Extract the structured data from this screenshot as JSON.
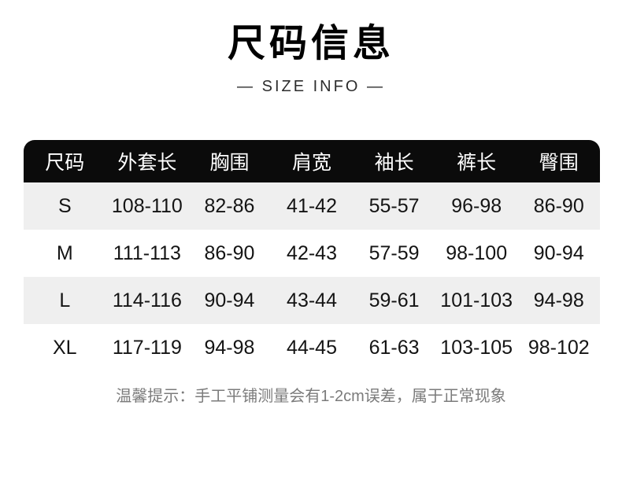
{
  "page": {
    "title": "尺码信息",
    "subtitle": "— SIZE INFO —",
    "note": "温馨提示：手工平铺测量会有1-2cm误差，属于正常现象"
  },
  "colors": {
    "header_bg": "#0b0b0b",
    "header_text": "#ffffff",
    "row_alt_bg": "#efefef",
    "text": "#141414",
    "note_text": "#7b7b7b",
    "subtitle_text": "#2d2d2d"
  },
  "chart_data": {
    "type": "table",
    "title": "尺码信息",
    "subtitle": "SIZE INFO",
    "columns": [
      "尺码",
      "外套长",
      "胸围",
      "肩宽",
      "袖长",
      "裤长",
      "臀围"
    ],
    "rows": [
      [
        "S",
        "108-110",
        "82-86",
        "41-42",
        "55-57",
        "96-98",
        "86-90"
      ],
      [
        "M",
        "111-113",
        "86-90",
        "42-43",
        "57-59",
        "98-100",
        "90-94"
      ],
      [
        "L",
        "114-116",
        "90-94",
        "43-44",
        "59-61",
        "101-103",
        "94-98"
      ],
      [
        "XL",
        "117-119",
        "94-98",
        "44-45",
        "61-63",
        "103-105",
        "98-102"
      ]
    ],
    "note": "温馨提示：手工平铺测量会有1-2cm误差，属于正常现象",
    "layout": {
      "zebra_rows": [
        0,
        2
      ],
      "header_style": "black-rounded-top",
      "units": "cm"
    }
  }
}
